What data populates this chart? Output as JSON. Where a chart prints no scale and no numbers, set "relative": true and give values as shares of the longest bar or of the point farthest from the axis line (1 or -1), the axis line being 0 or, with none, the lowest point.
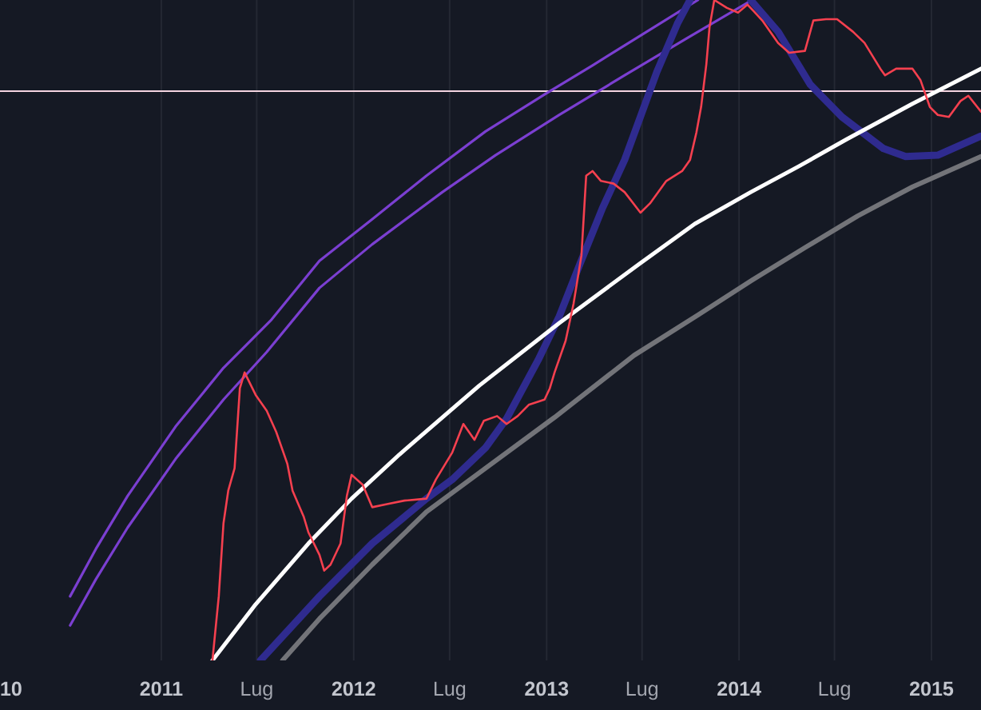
{
  "chart_data": {
    "type": "line",
    "relative": true,
    "grid": "x",
    "xlim": [
      "2010-03-01",
      "2015-04-05"
    ],
    "xticks": [
      {
        "value": "2010-03-22",
        "label": "10"
      },
      {
        "value": "2011-01-01",
        "label": "2011"
      },
      {
        "value": "2011-07-01",
        "label": "Lug"
      },
      {
        "value": "2012-01-01",
        "label": "2012"
      },
      {
        "value": "2012-07-01",
        "label": "Lug"
      },
      {
        "value": "2013-01-01",
        "label": "2013"
      },
      {
        "value": "2013-07-01",
        "label": "Lug"
      },
      {
        "value": "2014-01-01",
        "label": "2014"
      },
      {
        "value": "2014-07-01",
        "label": "Lug"
      },
      {
        "value": "2015-01-01",
        "label": "2015"
      }
    ],
    "ref_lines": [
      {
        "axis": "y",
        "value": 0.862,
        "color": "#f4d4e0"
      }
    ],
    "series": [
      {
        "color": "#7b3fd1",
        "x": [
          "2010-07-12",
          "2010-08-30",
          "2010-10-29",
          "2011-01-28",
          "2011-04-29",
          "2011-07-29",
          "2011-10-28",
          "2012-02-05",
          "2012-05-18",
          "2012-09-07",
          "2012-12-28",
          "2013-03-29",
          "2013-07-10",
          "2013-10-15"
        ],
        "values": [
          0.097,
          0.169,
          0.249,
          0.354,
          0.443,
          0.516,
          0.605,
          0.668,
          0.734,
          0.801,
          0.857,
          0.901,
          0.952,
          1
        ]
      },
      {
        "color": "#7b3fd1",
        "x": [
          "2010-07-12",
          "2010-08-30",
          "2010-10-29",
          "2011-01-28",
          "2011-04-29",
          "2011-07-20",
          "2011-10-28",
          "2012-02-05",
          "2012-06-17",
          "2012-09-26",
          "2013-01-25",
          "2013-05-29",
          "2013-09-24",
          "2014-01-26"
        ],
        "values": [
          0.053,
          0.123,
          0.201,
          0.305,
          0.395,
          0.467,
          0.564,
          0.63,
          0.709,
          0.765,
          0.826,
          0.886,
          0.942,
          1
        ]
      },
      {
        "color": "#737479",
        "x": [
          "2011-08-19",
          "2011-10-28",
          "2012-02-05",
          "2012-05-18",
          "2012-09-07",
          "2013-01-16",
          "2013-06-16",
          "2013-10-15",
          "2014-01-26",
          "2014-05-06",
          "2014-08-14",
          "2014-11-26",
          "2015-04-05"
        ],
        "values": [
          0,
          0.063,
          0.145,
          0.225,
          0.291,
          0.368,
          0.462,
          0.523,
          0.576,
          0.625,
          0.673,
          0.717,
          0.763
        ]
      },
      {
        "color": "#2f2b8f",
        "x": [
          "2011-07-08",
          "2011-10-28",
          "2012-02-05",
          "2012-05-18",
          "2012-07-06",
          "2012-09-07",
          "2012-10-17",
          "2012-12-16",
          "2013-01-25",
          "2013-03-05",
          "2013-04-17",
          "2013-05-29",
          "2013-07-29",
          "2013-09-06",
          "2013-09-30",
          "2013-12-15",
          "2014-01-23",
          "2014-03-16",
          "2014-05-16",
          "2014-07-15",
          "2014-10-02",
          "2014-11-13",
          "2015-01-13",
          "2015-04-05"
        ],
        "values": [
          0,
          0.097,
          0.177,
          0.245,
          0.274,
          0.322,
          0.366,
          0.455,
          0.521,
          0.6,
          0.685,
          0.758,
          0.891,
          0.964,
          1,
          null,
          1,
          0.952,
          0.872,
          0.823,
          0.775,
          0.763,
          0.765,
          0.794
        ]
      },
      {
        "color": "#ffffff",
        "x": [
          "2011-04-08",
          "2011-06-29",
          "2011-10-07",
          "2011-12-28",
          "2012-03-28",
          "2012-08-26",
          "2013-01-25",
          "2013-06-25",
          "2013-10-09",
          "2014-01-23",
          "2014-04-24",
          "2014-07-24",
          "2014-11-26",
          "2015-04-05"
        ],
        "values": [
          0,
          0.085,
          0.177,
          0.245,
          0.312,
          0.416,
          0.511,
          0.6,
          0.661,
          0.709,
          0.748,
          0.789,
          0.843,
          0.896
        ]
      },
      {
        "color": "#f5404f",
        "x": [
          "2011-04-08",
          "2011-04-20",
          "2011-04-29",
          "2011-05-08",
          "2011-05-20",
          "2011-05-30",
          "2011-06-08",
          "2011-06-29",
          "2011-07-20",
          "2011-08-07",
          "2011-08-28",
          "2011-09-07",
          "2011-09-28",
          "2011-10-07",
          "2011-10-28",
          "2011-11-06",
          "2011-11-18",
          "2011-12-07",
          "2011-12-19",
          "2011-12-28",
          "2012-01-18",
          "2012-02-05",
          "2012-03-06",
          "2012-04-06",
          "2012-05-18",
          "2012-06-05",
          "2012-07-06",
          "2012-07-27",
          "2012-08-17",
          "2012-09-04",
          "2012-09-29",
          "2012-10-17",
          "2012-11-07",
          "2012-11-28",
          "2012-12-28",
          "2013-01-07",
          "2013-01-16",
          "2013-02-06",
          "2013-02-21",
          "2013-03-08",
          "2013-03-17",
          "2013-03-29",
          "2013-04-14",
          "2013-05-08",
          "2013-05-29",
          "2013-06-28",
          "2013-07-16",
          "2013-08-16",
          "2013-09-15",
          "2013-09-30",
          "2013-10-12",
          "2013-10-21",
          "2013-10-31",
          "2013-11-06",
          "2013-11-15",
          "2013-12-09",
          "2013-12-30",
          "2014-01-17",
          "2014-01-29",
          "2014-02-14",
          "2014-03-16",
          "2014-04-06",
          "2014-05-06",
          "2014-05-22",
          "2014-06-15",
          "2014-07-06",
          "2014-08-05",
          "2014-08-27",
          "2014-09-26",
          "2014-10-05",
          "2014-10-26",
          "2014-11-26",
          "2014-12-11",
          "2014-12-29",
          "2015-01-13",
          "2015-02-03",
          "2015-02-25",
          "2015-03-12",
          "2015-04-05"
        ],
        "values": [
          0,
          0.097,
          0.208,
          0.257,
          0.291,
          0.412,
          0.436,
          0.402,
          0.378,
          0.346,
          0.298,
          0.257,
          0.218,
          0.194,
          0.16,
          0.136,
          0.145,
          0.177,
          0.249,
          0.281,
          0.266,
          0.232,
          0.237,
          0.242,
          0.245,
          0.274,
          0.315,
          0.358,
          0.334,
          0.363,
          0.37,
          0.358,
          0.37,
          0.387,
          0.395,
          0.412,
          0.436,
          0.484,
          0.54,
          0.613,
          0.734,
          0.741,
          0.726,
          0.722,
          0.709,
          0.678,
          0.692,
          0.726,
          0.741,
          0.758,
          0.799,
          0.838,
          0.903,
          0.959,
          1,
          0.988,
          0.981,
          0.993,
          0.983,
          0.969,
          0.935,
          0.92,
          0.923,
          0.969,
          0.971,
          0.971,
          0.952,
          0.935,
          0.896,
          0.886,
          0.896,
          0.896,
          0.879,
          0.838,
          0.826,
          0.823,
          0.847,
          0.855,
          0.831
        ]
      }
    ]
  }
}
